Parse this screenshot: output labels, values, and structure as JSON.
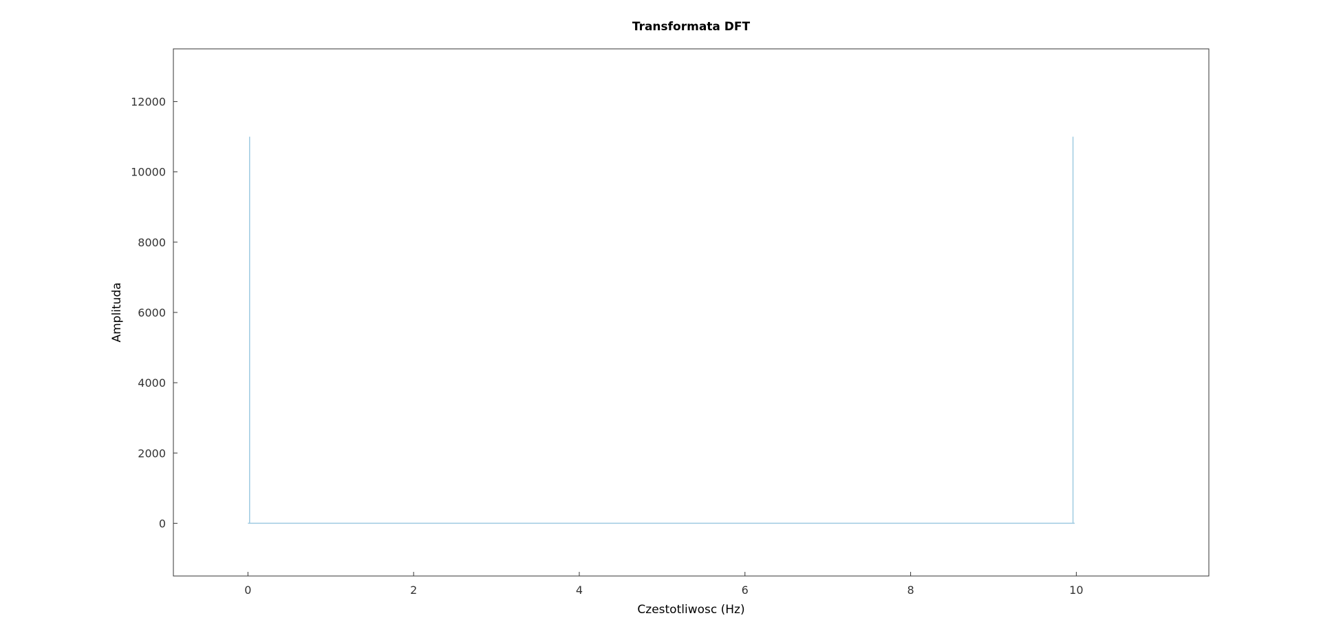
{
  "chart_data": {
    "type": "line",
    "title": "Transformata DFT",
    "xlabel": "Czestotliwosc (Hz)",
    "ylabel": "Amplituda",
    "xlim": [
      -0.9,
      11.6
    ],
    "ylim": [
      -1500,
      13500
    ],
    "xticks": [
      0,
      2,
      4,
      6,
      8,
      10
    ],
    "yticks": [
      0,
      2000,
      4000,
      6000,
      8000,
      10000,
      12000
    ],
    "grid": false,
    "series": [
      {
        "color": "#9ecae1",
        "points": [
          [
            0.0,
            0
          ],
          [
            0.02,
            0
          ],
          [
            0.02,
            11000
          ],
          [
            0.02,
            0
          ],
          [
            9.96,
            0
          ],
          [
            9.96,
            11000
          ],
          [
            9.96,
            0
          ],
          [
            9.98,
            0
          ]
        ]
      }
    ]
  }
}
